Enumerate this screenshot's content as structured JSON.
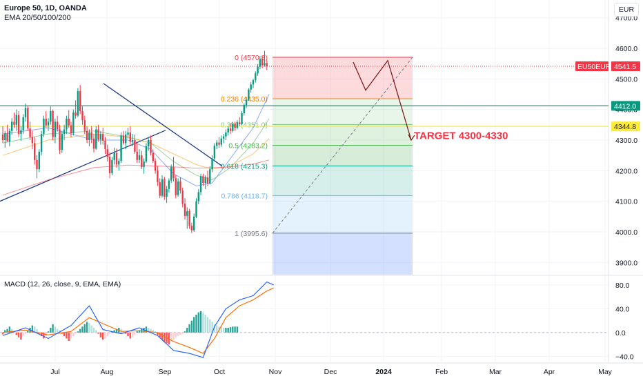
{
  "header": {
    "instrument": "Europe 50, 1D, OANDA",
    "indicator": "EMA 20/50/100/200",
    "currency": "EUR",
    "macd_label": "MACD (12, 26, close, 9, EMA, EMA)"
  },
  "chart_data": [
    {
      "type": "candlestick",
      "ylim": [
        3860,
        4740
      ],
      "ytick_values": [
        3900,
        4000,
        4100,
        4200,
        4300,
        4400,
        4500,
        4600,
        4700
      ],
      "ytick_labels": [
        "3900.0",
        "4000.0",
        "4100.0",
        "4200.0",
        "4300.0",
        "4400.0",
        "4500.0",
        "4600.0",
        "4700.0"
      ],
      "xtick_labels": [
        "Jul",
        "Aug",
        "Sep",
        "Oct",
        "Nov",
        "Dec",
        "2024",
        "Feb",
        "Mar",
        "Apr",
        "May"
      ],
      "price_tags": [
        {
          "label": "EU50EUR",
          "value_label": "4541.5",
          "value": 4541.5,
          "color": "#f23645"
        },
        {
          "label": "",
          "value_label": "4412.0",
          "value": 4412.0,
          "color": "#089981"
        },
        {
          "label": "",
          "value_label": "4344.8",
          "value": 4344.8,
          "color": "#ffeb3b"
        }
      ],
      "fibonacci": [
        {
          "label": "0 (4570.8)",
          "value": 4570.8,
          "color": "#f23645"
        },
        {
          "label": "0.236 (4435.0)",
          "value": 4435.0,
          "color": "#f57c00"
        },
        {
          "label": "0.382 (4351.0)",
          "value": 4351.0,
          "color": "#81c784"
        },
        {
          "label": "0.5 (4283.2)",
          "value": 4283.2,
          "color": "#4caf50"
        },
        {
          "label": "0.618 (4215.3)",
          "value": 4215.3,
          "color": "#089981"
        },
        {
          "label": "0.786 (4118.7)",
          "value": 4118.7,
          "color": "#64b5f6"
        },
        {
          "label": "1 (3995.6)",
          "value": 3995.6,
          "color": "#787b86"
        }
      ],
      "annotation": {
        "text": "TARGET 4300-4330",
        "color": "#f23645"
      },
      "candles_ohlc": [
        [
          4318,
          4345,
          4290,
          4300
        ],
        [
          4300,
          4330,
          4275,
          4322
        ],
        [
          4322,
          4350,
          4300,
          4295
        ],
        [
          4295,
          4338,
          4280,
          4330
        ],
        [
          4330,
          4372,
          4318,
          4360
        ],
        [
          4360,
          4390,
          4340,
          4350
        ],
        [
          4350,
          4400,
          4330,
          4382
        ],
        [
          4382,
          4395,
          4310,
          4320
        ],
        [
          4320,
          4345,
          4298,
          4332
        ],
        [
          4332,
          4385,
          4320,
          4375
        ],
        [
          4375,
          4420,
          4360,
          4405
        ],
        [
          4405,
          4412,
          4330,
          4338
        ],
        [
          4338,
          4360,
          4300,
          4310
        ],
        [
          4310,
          4330,
          4270,
          4290
        ],
        [
          4290,
          4310,
          4220,
          4235
        ],
        [
          4235,
          4250,
          4175,
          4205
        ],
        [
          4205,
          4270,
          4195,
          4262
        ],
        [
          4262,
          4330,
          4250,
          4320
        ],
        [
          4320,
          4380,
          4310,
          4370
        ],
        [
          4370,
          4395,
          4340,
          4348
        ],
        [
          4348,
          4372,
          4330,
          4360
        ],
        [
          4360,
          4410,
          4350,
          4395
        ],
        [
          4395,
          4400,
          4300,
          4310
        ],
        [
          4310,
          4370,
          4290,
          4360
        ],
        [
          4360,
          4380,
          4328,
          4335
        ],
        [
          4335,
          4350,
          4255,
          4268
        ],
        [
          4268,
          4330,
          4258,
          4320
        ],
        [
          4320,
          4350,
          4300,
          4335
        ],
        [
          4335,
          4380,
          4320,
          4370
        ],
        [
          4370,
          4398,
          4340,
          4348
        ],
        [
          4348,
          4360,
          4310,
          4322
        ],
        [
          4322,
          4400,
          4315,
          4390
        ],
        [
          4390,
          4430,
          4370,
          4380
        ],
        [
          4380,
          4470,
          4375,
          4460
        ],
        [
          4460,
          4480,
          4385,
          4395
        ],
        [
          4395,
          4410,
          4350,
          4365
        ],
        [
          4365,
          4380,
          4320,
          4330
        ],
        [
          4330,
          4345,
          4290,
          4300
        ],
        [
          4300,
          4335,
          4280,
          4325
        ],
        [
          4325,
          4345,
          4290,
          4305
        ],
        [
          4305,
          4320,
          4260,
          4272
        ],
        [
          4272,
          4345,
          4268,
          4335
        ],
        [
          4335,
          4350,
          4295,
          4302
        ],
        [
          4302,
          4330,
          4285,
          4320
        ],
        [
          4320,
          4340,
          4285,
          4298
        ],
        [
          4298,
          4310,
          4255,
          4270
        ],
        [
          4270,
          4285,
          4230,
          4245
        ],
        [
          4245,
          4260,
          4175,
          4192
        ],
        [
          4192,
          4245,
          4185,
          4235
        ],
        [
          4235,
          4275,
          4220,
          4258
        ],
        [
          4258,
          4272,
          4210,
          4220
        ],
        [
          4220,
          4240,
          4200,
          4232
        ],
        [
          4232,
          4325,
          4225,
          4315
        ],
        [
          4315,
          4330,
          4285,
          4290
        ],
        [
          4290,
          4330,
          4270,
          4318
        ],
        [
          4318,
          4340,
          4305,
          4325
        ],
        [
          4325,
          4345,
          4285,
          4295
        ],
        [
          4295,
          4320,
          4280,
          4300
        ],
        [
          4300,
          4318,
          4255,
          4262
        ],
        [
          4262,
          4290,
          4225,
          4235
        ],
        [
          4235,
          4270,
          4225,
          4250
        ],
        [
          4250,
          4265,
          4205,
          4212
        ],
        [
          4212,
          4240,
          4190,
          4230
        ],
        [
          4230,
          4290,
          4225,
          4280
        ],
        [
          4280,
          4310,
          4265,
          4300
        ],
        [
          4300,
          4315,
          4250,
          4258
        ],
        [
          4258,
          4270,
          4225,
          4232
        ],
        [
          4232,
          4240,
          4190,
          4200
        ],
        [
          4200,
          4215,
          4150,
          4162
        ],
        [
          4162,
          4175,
          4110,
          4118
        ],
        [
          4118,
          4185,
          4112,
          4172
        ],
        [
          4172,
          4180,
          4105,
          4115
        ],
        [
          4115,
          4150,
          4095,
          4140
        ],
        [
          4140,
          4175,
          4128,
          4168
        ],
        [
          4168,
          4220,
          4160,
          4212
        ],
        [
          4212,
          4245,
          4165,
          4175
        ],
        [
          4175,
          4185,
          4110,
          4120
        ],
        [
          4120,
          4175,
          4115,
          4165
        ],
        [
          4165,
          4178,
          4125,
          4135
        ],
        [
          4135,
          4145,
          4080,
          4092
        ],
        [
          4092,
          4110,
          4040,
          4052
        ],
        [
          4052,
          4080,
          4010,
          4068
        ],
        [
          4068,
          4075,
          4010,
          4020
        ],
        [
          4020,
          4030,
          3996,
          4005
        ],
        [
          4005,
          4060,
          4000,
          4050
        ],
        [
          4050,
          4110,
          4045,
          4100
        ],
        [
          4100,
          4140,
          4090,
          4130
        ],
        [
          4130,
          4190,
          4120,
          4182
        ],
        [
          4182,
          4190,
          4150,
          4160
        ],
        [
          4160,
          4185,
          4140,
          4178
        ],
        [
          4178,
          4200,
          4150,
          4158
        ],
        [
          4158,
          4215,
          4155,
          4205
        ],
        [
          4205,
          4250,
          4195,
          4240
        ],
        [
          4240,
          4290,
          4230,
          4282
        ],
        [
          4282,
          4300,
          4270,
          4292
        ],
        [
          4292,
          4310,
          4275,
          4285
        ],
        [
          4285,
          4315,
          4278,
          4305
        ],
        [
          4305,
          4320,
          4290,
          4312
        ],
        [
          4312,
          4335,
          4300,
          4325
        ],
        [
          4325,
          4345,
          4315,
          4338
        ],
        [
          4338,
          4355,
          4320,
          4330
        ],
        [
          4330,
          4360,
          4325,
          4352
        ],
        [
          4352,
          4360,
          4330,
          4340
        ],
        [
          4340,
          4365,
          4335,
          4358
        ],
        [
          4358,
          4375,
          4345,
          4352
        ],
        [
          4352,
          4395,
          4350,
          4388
        ],
        [
          4388,
          4420,
          4380,
          4415
        ],
        [
          4415,
          4440,
          4405,
          4432
        ],
        [
          4432,
          4470,
          4428,
          4465
        ],
        [
          4465,
          4490,
          4455,
          4482
        ],
        [
          4482,
          4500,
          4470,
          4496
        ],
        [
          4496,
          4525,
          4488,
          4518
        ],
        [
          4518,
          4548,
          4510,
          4540
        ],
        [
          4540,
          4575,
          4532,
          4565
        ],
        [
          4565,
          4575,
          4535,
          4545
        ],
        [
          4545,
          4592,
          4540,
          4552
        ],
        [
          4552,
          4560,
          4528,
          4541.5
        ]
      ],
      "ema_series": [
        {
          "name": "EMA 20",
          "color": "#2962ff",
          "values": [
            [
              0,
              4320
            ],
            [
              20,
              4340
            ],
            [
              40,
              4300
            ],
            [
              55,
              4300
            ],
            [
              65,
              4270
            ],
            [
              75,
              4190
            ],
            [
              85,
              4150
            ],
            [
              92,
              4160
            ],
            [
              100,
              4240
            ],
            [
              110,
              4340
            ],
            [
              117,
              4450
            ]
          ]
        },
        {
          "name": "EMA 50",
          "color": "#4caf50",
          "values": [
            [
              0,
              4290
            ],
            [
              20,
              4320
            ],
            [
              40,
              4330
            ],
            [
              55,
              4310
            ],
            [
              65,
              4290
            ],
            [
              75,
              4230
            ],
            [
              85,
              4185
            ],
            [
              92,
              4170
            ],
            [
              100,
              4210
            ],
            [
              110,
              4290
            ],
            [
              117,
              4370
            ]
          ]
        },
        {
          "name": "EMA 100",
          "color": "#ff9800",
          "values": [
            [
              0,
              4250
            ],
            [
              20,
              4300
            ],
            [
              40,
              4320
            ],
            [
              55,
              4310
            ],
            [
              65,
              4290
            ],
            [
              75,
              4255
            ],
            [
              85,
              4220
            ],
            [
              92,
              4205
            ],
            [
              100,
              4215
            ],
            [
              110,
              4255
            ],
            [
              117,
              4305
            ]
          ]
        },
        {
          "name": "EMA 200",
          "color": "#f23645",
          "values": [
            [
              0,
              4120
            ],
            [
              20,
              4170
            ],
            [
              40,
              4210
            ],
            [
              55,
              4218
            ],
            [
              70,
              4215
            ],
            [
              85,
              4208
            ],
            [
              100,
              4212
            ],
            [
              110,
              4222
            ],
            [
              117,
              4235
            ]
          ]
        }
      ]
    },
    {
      "type": "macd",
      "ylim": [
        -50,
        95
      ],
      "ytick_values": [
        80,
        40,
        0,
        -40
      ],
      "ytick_labels": [
        "80.0",
        "40.0",
        "0.0",
        "−40.0"
      ],
      "macd": [
        [
          0,
          -5
        ],
        [
          10,
          8
        ],
        [
          20,
          -10
        ],
        [
          30,
          12
        ],
        [
          38,
          45
        ],
        [
          44,
          5
        ],
        [
          52,
          -2
        ],
        [
          60,
          8
        ],
        [
          68,
          -5
        ],
        [
          75,
          -30
        ],
        [
          82,
          -35
        ],
        [
          88,
          -42
        ],
        [
          93,
          10
        ],
        [
          98,
          40
        ],
        [
          104,
          55
        ],
        [
          110,
          62
        ],
        [
          116,
          85
        ],
        [
          119,
          80
        ]
      ],
      "signal": [
        [
          0,
          0
        ],
        [
          10,
          4
        ],
        [
          20,
          -4
        ],
        [
          30,
          2
        ],
        [
          38,
          25
        ],
        [
          44,
          15
        ],
        [
          52,
          2
        ],
        [
          60,
          3
        ],
        [
          68,
          0
        ],
        [
          75,
          -15
        ],
        [
          82,
          -25
        ],
        [
          88,
          -35
        ],
        [
          93,
          -10
        ],
        [
          98,
          25
        ],
        [
          104,
          45
        ],
        [
          110,
          55
        ],
        [
          116,
          70
        ],
        [
          119,
          75
        ]
      ],
      "histogram": [
        -3,
        4,
        6,
        10,
        6,
        2,
        -4,
        -8,
        -12,
        -6,
        -2,
        4,
        8,
        12,
        10,
        6,
        -2,
        -6,
        -10,
        -6,
        2,
        8,
        14,
        10,
        6,
        4,
        -2,
        -6,
        -10,
        -14,
        -10,
        -6,
        -2,
        2,
        6,
        10,
        14,
        18,
        16,
        12,
        8,
        4,
        -2,
        -8,
        -12,
        -10,
        -6,
        -2,
        2,
        4,
        6,
        8,
        6,
        2,
        -2,
        -6,
        -10,
        -8,
        -4,
        2,
        4,
        6,
        8,
        10,
        8,
        6,
        4,
        2,
        -4,
        -8,
        -12,
        -16,
        -18,
        -20,
        -16,
        -12,
        -8,
        -6,
        -4,
        -2,
        2,
        8,
        14,
        20,
        26,
        30,
        34,
        36,
        34,
        30,
        26,
        22,
        18,
        14,
        12,
        10,
        9,
        8,
        8,
        8,
        9,
        10,
        10,
        10
      ]
    }
  ]
}
